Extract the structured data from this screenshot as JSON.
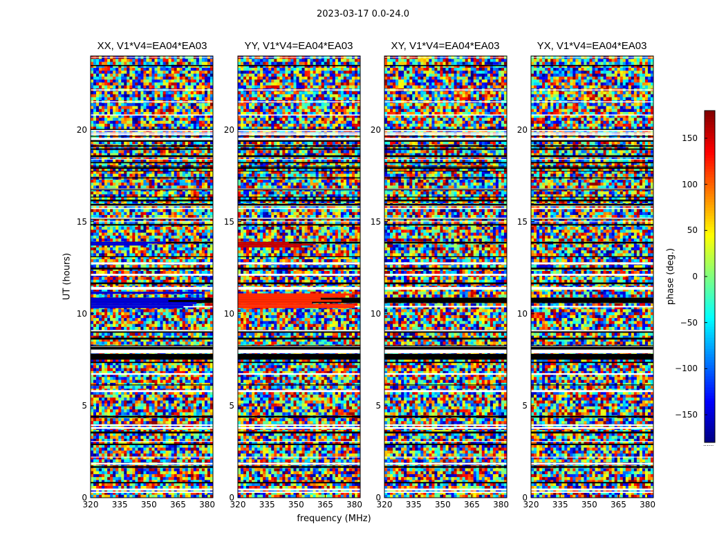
{
  "figure": {
    "suptitle": "2023-03-17 0.0-24.0",
    "xlabel": "frequency (MHz)",
    "ylabel": "UT (hours)",
    "colorbar_label": "phase (deg.)"
  },
  "chart_data": [
    {
      "type": "heatmap",
      "title": "XX, V1*V4=EA04*EA03",
      "xlim": [
        320,
        383
      ],
      "ylim": [
        0,
        24
      ],
      "xticks": [
        "320",
        "335",
        "350",
        "365",
        "380"
      ],
      "yticks": [
        "0",
        "5",
        "10",
        "15",
        "20"
      ],
      "value_range": [
        -180,
        180
      ],
      "features": [
        {
          "ut_start": 13.7,
          "ut_end": 13.9,
          "freq_start": 320,
          "freq_end": 360,
          "phase": -150
        },
        {
          "ut_start": 10.3,
          "ut_end": 11.3,
          "freq_start": 320,
          "freq_end": 383,
          "phase": -150
        }
      ]
    },
    {
      "type": "heatmap",
      "title": "YY, V1*V4=EA04*EA03",
      "xlim": [
        320,
        383
      ],
      "ylim": [
        0,
        24
      ],
      "xticks": [
        "320",
        "335",
        "350",
        "365",
        "380"
      ],
      "yticks": [
        "0",
        "5",
        "10",
        "15",
        "20"
      ],
      "value_range": [
        -180,
        180
      ],
      "features": [
        {
          "ut_start": 13.6,
          "ut_end": 13.9,
          "freq_start": 320,
          "freq_end": 360,
          "phase": 155
        },
        {
          "ut_start": 10.3,
          "ut_end": 11.1,
          "freq_start": 320,
          "freq_end": 383,
          "phase": 120
        }
      ]
    },
    {
      "type": "heatmap",
      "title": "XY, V1*V4=EA04*EA03",
      "xlim": [
        320,
        383
      ],
      "ylim": [
        0,
        24
      ],
      "xticks": [
        "320",
        "335",
        "350",
        "365",
        "380"
      ],
      "yticks": [
        "0",
        "5",
        "10",
        "15",
        "20"
      ],
      "value_range": [
        -180,
        180
      ],
      "features": []
    },
    {
      "type": "heatmap",
      "title": "YX, V1*V4=EA04*EA03",
      "xlim": [
        320,
        383
      ],
      "ylim": [
        0,
        24
      ],
      "xticks": [
        "320",
        "335",
        "350",
        "365",
        "380"
      ],
      "yticks": [
        "0",
        "5",
        "10",
        "15",
        "20"
      ],
      "value_range": [
        -180,
        180
      ],
      "features": []
    }
  ],
  "colorbar": {
    "range": [
      -180,
      180
    ],
    "ticks": [
      {
        "value": 150,
        "label": "150"
      },
      {
        "value": 100,
        "label": "100"
      },
      {
        "value": 50,
        "label": "50"
      },
      {
        "value": 0,
        "label": "0"
      },
      {
        "value": -50,
        "label": "−50"
      },
      {
        "value": -100,
        "label": "−100"
      },
      {
        "value": -150,
        "label": "−150"
      }
    ],
    "bottom_mark": "......"
  },
  "colors": {
    "flag_band": "#000000",
    "gap_band": "#ffffff",
    "axes_edge": "#000000"
  }
}
